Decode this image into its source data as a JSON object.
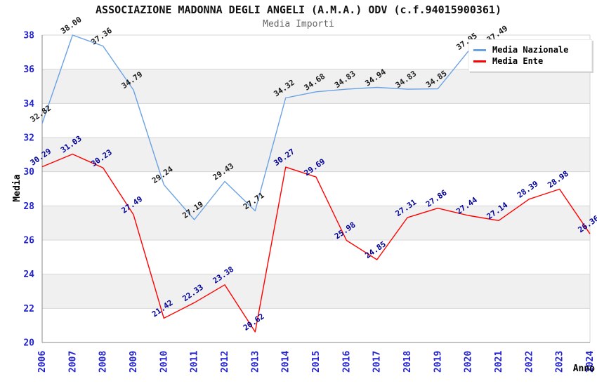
{
  "header": {
    "title": "ASSOCIAZIONE MADONNA DEGLI ANGELI (A.M.A.) ODV (c.f.94015900361)",
    "subtitle": "Media Importi"
  },
  "legend": {
    "position": "top-right",
    "items": [
      {
        "label": "Media Nazionale",
        "color": "#6AA1E4"
      },
      {
        "label": "Media Ente",
        "color": "#FF0000"
      }
    ]
  },
  "chart_data": {
    "type": "line",
    "title": "Media Importi",
    "xlabel": "Anno",
    "ylabel": "Media",
    "ylim": [
      20,
      38
    ],
    "ytick_step": 2,
    "grid": "horizontal-with-alternating-bands",
    "band_fill": "#f0f0f0",
    "gridline_color": "#d6d6d6",
    "axis_color": "#8a8a8a",
    "tick_label_color": "#2222cc",
    "legend_position": "top-right",
    "x": [
      "2006",
      "2007",
      "2008",
      "2009",
      "2010",
      "2011",
      "2012",
      "2013",
      "2014",
      "2015",
      "2016",
      "2017",
      "2018",
      "2019",
      "2020",
      "2021",
      "2022",
      "2023",
      "2024"
    ],
    "series": [
      {
        "name": "Media Nazionale",
        "color": "#6AA1E4",
        "label_color": "#1a1a1a",
        "values": [
          32.82,
          38.0,
          37.36,
          34.79,
          29.24,
          27.19,
          29.43,
          27.71,
          34.32,
          34.68,
          34.83,
          34.94,
          34.83,
          34.85,
          37.05,
          37.49,
          null,
          null,
          null
        ]
      },
      {
        "name": "Media Ente",
        "color": "#FF0000",
        "label_color": "#000099",
        "values": [
          30.29,
          31.03,
          30.23,
          27.49,
          21.42,
          22.33,
          23.38,
          20.62,
          30.27,
          29.69,
          25.98,
          24.85,
          27.31,
          27.86,
          27.44,
          27.14,
          28.39,
          28.98,
          26.36
        ]
      }
    ]
  }
}
